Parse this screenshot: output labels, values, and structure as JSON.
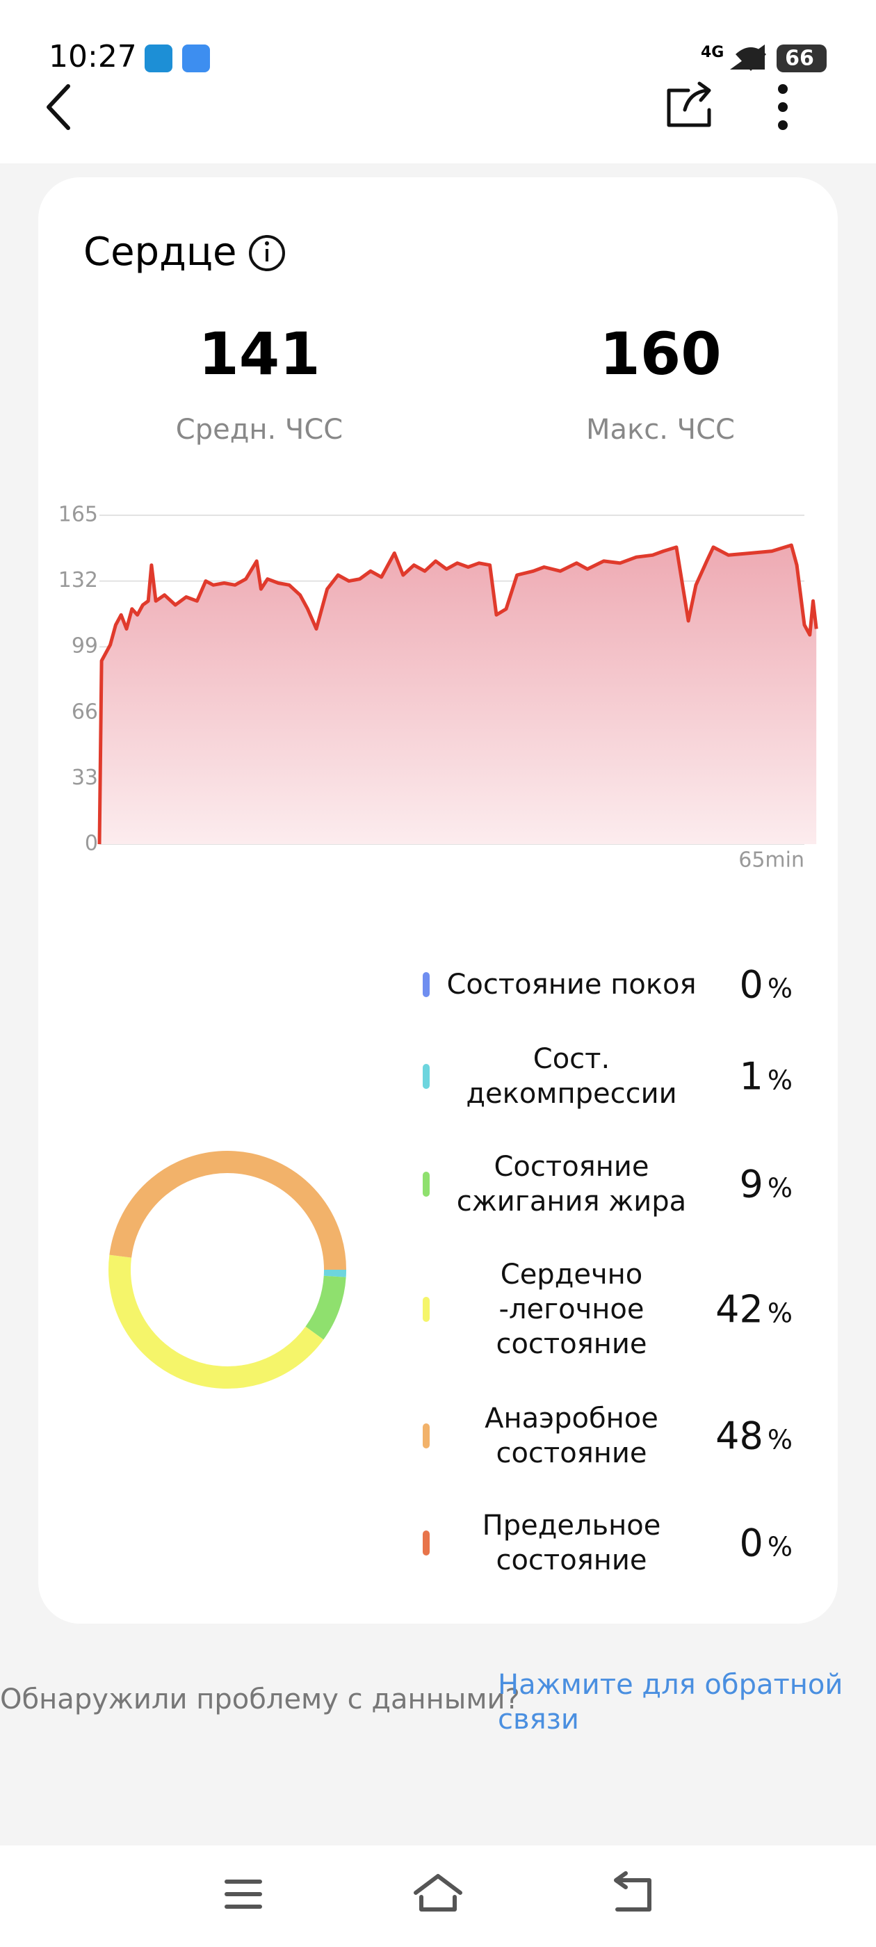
{
  "status_bar": {
    "time": "10:27",
    "network": "4G",
    "battery": "66"
  },
  "card": {
    "title": "Сердце",
    "stats": [
      {
        "value": "141",
        "label": "Средн. ЧСС"
      },
      {
        "value": "160",
        "label": "Макс. ЧСС"
      }
    ]
  },
  "chart_data": [
    {
      "type": "line",
      "x": [
        0,
        0.2,
        1,
        1.5,
        2,
        2.5,
        3,
        3.5,
        4,
        4.5,
        4.8,
        5.2,
        6,
        7,
        8,
        9,
        9.8,
        10.5,
        11.5,
        12.5,
        13.5,
        14.5,
        14.9,
        15.5,
        16.5,
        17.5,
        18.5,
        19.2,
        20,
        21,
        22,
        23,
        24,
        25,
        26,
        27.2,
        28,
        29,
        30,
        31,
        32,
        33,
        34,
        35,
        36,
        36.6,
        37.5,
        38.5,
        40,
        41,
        42.5,
        44,
        45,
        46.5,
        48,
        49.5,
        51,
        52,
        53.2,
        54.3,
        55,
        56,
        56.6,
        58,
        60,
        62,
        63.8,
        64.3,
        65,
        65.5,
        65.8,
        66.1
      ],
      "series": [
        {
          "color": "#e03a2c",
          "values": [
            0,
            92,
            100,
            110,
            115,
            108,
            118,
            115,
            120,
            122,
            140,
            122,
            125,
            120,
            124,
            122,
            132,
            130,
            131,
            130,
            133,
            142,
            128,
            133,
            131,
            130,
            125,
            118,
            108,
            128,
            135,
            132,
            133,
            137,
            134,
            146,
            135,
            140,
            137,
            142,
            138,
            141,
            139,
            141,
            140,
            115,
            118,
            135,
            137,
            139,
            137,
            141,
            138,
            142,
            141,
            144,
            145,
            147,
            149,
            112,
            130,
            142,
            149,
            145,
            146,
            147,
            150,
            140,
            110,
            105,
            122,
            108
          ]
        }
      ],
      "xlim": [
        0,
        65
      ],
      "xticks": [
        {
          "value": 65,
          "label": "65min"
        }
      ],
      "ylim": [
        0,
        165
      ],
      "yticks": [
        0,
        33,
        66,
        99,
        132,
        165
      ],
      "grid": true
    },
    {
      "type": "pie",
      "categories": [
        "Состояние покоя",
        "Сост.\nдекомпрессии",
        "Состояние\nсжигания жира",
        "Сердечно\n-легочное\nсостояние",
        "Анаэробное\nсостояние",
        "Предельное\nсостояние"
      ],
      "values": [
        0,
        1,
        9,
        42,
        48,
        0
      ],
      "colors": [
        "#6f8ef0",
        "#6dd5de",
        "#8fe06e",
        "#f5f56a",
        "#f2b26a",
        "#e8744a"
      ],
      "unit": "%"
    }
  ],
  "footer": {
    "question": "Обнаружили проблему с данными?",
    "link": "Нажмите для обратной связи"
  }
}
